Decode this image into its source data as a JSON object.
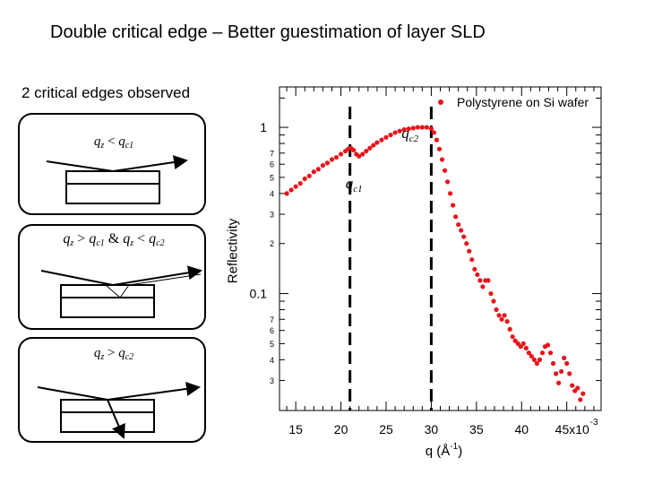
{
  "slide": {
    "title": "Double critical edge – Better guestimation of layer SLD",
    "left_label": "2 critical edges observed"
  },
  "panels": [
    {
      "q_sym": "q",
      "q_sub": "z",
      "op": "<",
      "c_sym": "q",
      "c_sub": "c1"
    },
    {
      "q_sym": "q",
      "q_sub": "z",
      "op": ">",
      "c_sym": "q",
      "c_sub": "c1",
      "joiner": "&",
      "q2_sym": "q",
      "q2_sub": "z",
      "op2": "<",
      "c2_sym": "q",
      "c2_sub": "c2"
    },
    {
      "q_sym": "q",
      "q_sub": "z",
      "op": ">",
      "c_sym": "q",
      "c_sub": "c2"
    }
  ],
  "chart_data": {
    "type": "scatter",
    "legend": {
      "label": "Polystyrene on Si wafer",
      "position": "top-right",
      "color": "#e8141b"
    },
    "xlabel": "q (Å-1)",
    "ylabel": "Reflectivity",
    "x_tick_labels": [
      "15",
      "20",
      "25",
      "30",
      "35",
      "40",
      "45x10-3"
    ],
    "y_major_labels": [
      "1",
      "0.1"
    ],
    "y_minor_labels": [
      "7",
      "6",
      "5",
      "4",
      "3",
      "2",
      "7",
      "6",
      "5",
      "4",
      "3"
    ],
    "xlim": [
      0.0132,
      0.0488
    ],
    "ylim": [
      0.0198,
      1.75
    ],
    "yscale": "log",
    "annotations": [
      {
        "symbol": "q",
        "sub": "c1",
        "x": 0.0215,
        "y": 0.5
      },
      {
        "symbol": "q",
        "sub": "c2",
        "x": 0.0279,
        "y": 0.86
      }
    ],
    "vlines": [
      0.021,
      0.03
    ],
    "series": [
      {
        "color": "#e8141b",
        "x": [
          0.014,
          0.0145,
          0.015,
          0.0155,
          0.016,
          0.0165,
          0.017,
          0.0175,
          0.018,
          0.0185,
          0.019,
          0.0195,
          0.02,
          0.0205,
          0.0208,
          0.0211,
          0.0214,
          0.0217,
          0.022,
          0.0224,
          0.0228,
          0.0232,
          0.0236,
          0.024,
          0.0245,
          0.025,
          0.0255,
          0.026,
          0.0265,
          0.027,
          0.0275,
          0.028,
          0.0285,
          0.029,
          0.0295,
          0.03,
          0.0303,
          0.0306,
          0.0309,
          0.0312,
          0.0315,
          0.0318,
          0.0321,
          0.0324,
          0.0327,
          0.033,
          0.0333,
          0.0336,
          0.0339,
          0.0342,
          0.0345,
          0.0348,
          0.0351,
          0.0354,
          0.0357,
          0.036,
          0.0363,
          0.0366,
          0.0369,
          0.0372,
          0.0375,
          0.0378,
          0.0381,
          0.0384,
          0.0387,
          0.039,
          0.0393,
          0.0396,
          0.0399,
          0.0402,
          0.0405,
          0.0408,
          0.0411,
          0.0414,
          0.0417,
          0.042,
          0.0423,
          0.0426,
          0.0429,
          0.0432,
          0.0435,
          0.0438,
          0.0441,
          0.0444,
          0.0447,
          0.045,
          0.0453,
          0.0456,
          0.0459,
          0.0462,
          0.0465,
          0.0468
        ],
        "y": [
          0.4,
          0.42,
          0.44,
          0.46,
          0.49,
          0.51,
          0.54,
          0.56,
          0.59,
          0.61,
          0.64,
          0.66,
          0.69,
          0.72,
          0.74,
          0.75,
          0.73,
          0.69,
          0.67,
          0.69,
          0.72,
          0.75,
          0.78,
          0.81,
          0.84,
          0.87,
          0.9,
          0.93,
          0.95,
          0.97,
          0.98,
          0.99,
          1.0,
          1.0,
          1.0,
          0.98,
          0.93,
          0.84,
          0.74,
          0.64,
          0.55,
          0.47,
          0.4,
          0.34,
          0.29,
          0.26,
          0.24,
          0.22,
          0.2,
          0.18,
          0.16,
          0.14,
          0.13,
          0.12,
          0.11,
          0.12,
          0.12,
          0.1,
          0.09,
          0.08,
          0.074,
          0.07,
          0.074,
          0.068,
          0.061,
          0.055,
          0.052,
          0.05,
          0.048,
          0.05,
          0.047,
          0.044,
          0.042,
          0.04,
          0.038,
          0.04,
          0.044,
          0.048,
          0.049,
          0.044,
          0.038,
          0.033,
          0.029,
          0.034,
          0.041,
          0.038,
          0.033,
          0.028,
          0.026,
          0.027,
          0.023,
          0.025
        ]
      }
    ]
  }
}
